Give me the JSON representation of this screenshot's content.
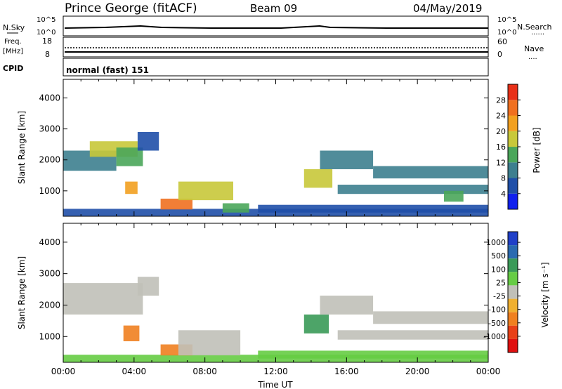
{
  "header": {
    "station": "Prince George (fitACF)",
    "beam": "Beam 09",
    "date": "04/May/2019"
  },
  "strips": {
    "nsky": {
      "left_label": "N.Sky",
      "left_ticks": [
        "10^5",
        "10^0"
      ],
      "right_ticks": [
        "10^5",
        "10^0"
      ],
      "right_label": "N.Search",
      "right_legend": "......"
    },
    "freq": {
      "left_label_1": "Freq.",
      "left_label_2": "[MHz]",
      "left_ticks": [
        "18",
        "8"
      ],
      "right_ticks": [
        "60",
        "0"
      ],
      "right_label": "Nave",
      "right_legend": "...."
    },
    "cpid": {
      "label": "CPID",
      "value": "normal (fast) 151"
    }
  },
  "chart_data": [
    {
      "type": "heatmap",
      "name": "power",
      "xlabel": "Time UT",
      "ylabel": "Slant Range [km]",
      "x_ticks": [
        "00:00",
        "04:00",
        "08:00",
        "12:00",
        "16:00",
        "20:00",
        "00:00"
      ],
      "x_range_hours": [
        0,
        24
      ],
      "y_ticks": [
        1000,
        2000,
        3000,
        4000
      ],
      "ylim": [
        180,
        4600
      ],
      "colorbar": {
        "label": "Power [dB]",
        "ticks": [
          "4",
          "8",
          "12",
          "16",
          "20",
          "24",
          "28"
        ],
        "range": [
          0,
          32
        ],
        "colors": [
          "#1020ee",
          "#1f4fa8",
          "#3d7f8f",
          "#4aa65a",
          "#c8c83a",
          "#f2a020",
          "#f07020",
          "#e83018"
        ]
      },
      "regions": [
        {
          "t0": 0.0,
          "t1": 24.0,
          "r0": 180,
          "r1": 420,
          "value": 6
        },
        {
          "t0": 0.0,
          "t1": 3.0,
          "r0": 1650,
          "r1": 2300,
          "value": 8
        },
        {
          "t0": 1.5,
          "t1": 4.2,
          "r0": 2100,
          "r1": 2600,
          "value": 16
        },
        {
          "t0": 3.0,
          "t1": 4.5,
          "r0": 1800,
          "r1": 2400,
          "value": 12
        },
        {
          "t0": 3.5,
          "t1": 4.2,
          "r0": 900,
          "r1": 1300,
          "value": 22
        },
        {
          "t0": 4.2,
          "t1": 5.4,
          "r0": 2300,
          "r1": 2900,
          "value": 6
        },
        {
          "t0": 5.5,
          "t1": 7.3,
          "r0": 400,
          "r1": 750,
          "value": 24
        },
        {
          "t0": 6.5,
          "t1": 9.6,
          "r0": 700,
          "r1": 1300,
          "value": 18
        },
        {
          "t0": 9.0,
          "t1": 10.5,
          "r0": 300,
          "r1": 600,
          "value": 12
        },
        {
          "t0": 11.0,
          "t1": 24.0,
          "r0": 300,
          "r1": 550,
          "value": 6
        },
        {
          "t0": 13.6,
          "t1": 15.2,
          "r0": 1100,
          "r1": 1700,
          "value": 18
        },
        {
          "t0": 14.5,
          "t1": 17.5,
          "r0": 1700,
          "r1": 2300,
          "value": 8
        },
        {
          "t0": 15.5,
          "t1": 24.0,
          "r0": 900,
          "r1": 1200,
          "value": 10
        },
        {
          "t0": 17.5,
          "t1": 24.0,
          "r0": 1400,
          "r1": 1800,
          "value": 8
        },
        {
          "t0": 21.5,
          "t1": 22.6,
          "r0": 650,
          "r1": 1000,
          "value": 12
        }
      ]
    },
    {
      "type": "heatmap",
      "name": "velocity",
      "xlabel": "Time UT",
      "ylabel": "Slant Range [km]",
      "x_ticks": [
        "00:00",
        "04:00",
        "08:00",
        "12:00",
        "16:00",
        "20:00",
        "00:00"
      ],
      "x_range_hours": [
        0,
        24
      ],
      "y_ticks": [
        1000,
        2000,
        3000,
        4000
      ],
      "ylim": [
        180,
        4600
      ],
      "colorbar": {
        "label": "Velocity [m s⁻¹]",
        "ticks": [
          "1000",
          "500",
          "100",
          "25",
          "-25",
          "-100",
          "-500",
          "-1000"
        ],
        "colors": [
          "#2040c8",
          "#2a6ab0",
          "#3a9a58",
          "#66cc44",
          "#c0c0b8",
          "#f0b030",
          "#f08020",
          "#e84018",
          "#e01010"
        ]
      },
      "regions": [
        {
          "t0": 0.0,
          "t1": 24.0,
          "r0": 180,
          "r1": 420,
          "value": 100
        },
        {
          "t0": 0.0,
          "t1": 4.5,
          "r0": 1700,
          "r1": 2700,
          "value": 0
        },
        {
          "t0": 4.2,
          "t1": 5.4,
          "r0": 2300,
          "r1": 2900,
          "value": 0
        },
        {
          "t0": 3.4,
          "t1": 4.3,
          "r0": 850,
          "r1": 1350,
          "value": -300
        },
        {
          "t0": 5.5,
          "t1": 7.3,
          "r0": 400,
          "r1": 750,
          "value": -300
        },
        {
          "t0": 6.5,
          "t1": 10.0,
          "r0": 400,
          "r1": 1200,
          "value": 0
        },
        {
          "t0": 11.0,
          "t1": 24.0,
          "r0": 300,
          "r1": 550,
          "value": 100
        },
        {
          "t0": 13.6,
          "t1": 15.0,
          "r0": 1100,
          "r1": 1700,
          "value": 200
        },
        {
          "t0": 14.5,
          "t1": 17.5,
          "r0": 1700,
          "r1": 2300,
          "value": 0
        },
        {
          "t0": 15.5,
          "t1": 24.0,
          "r0": 900,
          "r1": 1200,
          "value": 0
        },
        {
          "t0": 17.5,
          "t1": 24.0,
          "r0": 1400,
          "r1": 1800,
          "value": 0
        }
      ]
    }
  ]
}
